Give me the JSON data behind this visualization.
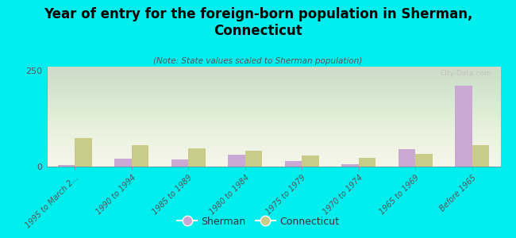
{
  "title": "Year of entry for the foreign-born population in Sherman,\nConnecticut",
  "subtitle": "(Note: State values scaled to Sherman population)",
  "categories": [
    "1995 to March 2...",
    "1990 to 1994",
    "1985 to 1989",
    "1980 to 1984",
    "1975 to 1979",
    "1970 to 1974",
    "1965 to 1969",
    "Before 1965"
  ],
  "sherman_values": [
    5,
    20,
    18,
    30,
    15,
    7,
    45,
    210
  ],
  "connecticut_values": [
    75,
    55,
    48,
    42,
    28,
    22,
    32,
    55
  ],
  "sherman_color": "#c9a8d4",
  "connecticut_color": "#c8cc88",
  "background_color": "#00eeee",
  "ylim": [
    0,
    260
  ],
  "bar_width": 0.3,
  "watermark": "City-Data.com"
}
